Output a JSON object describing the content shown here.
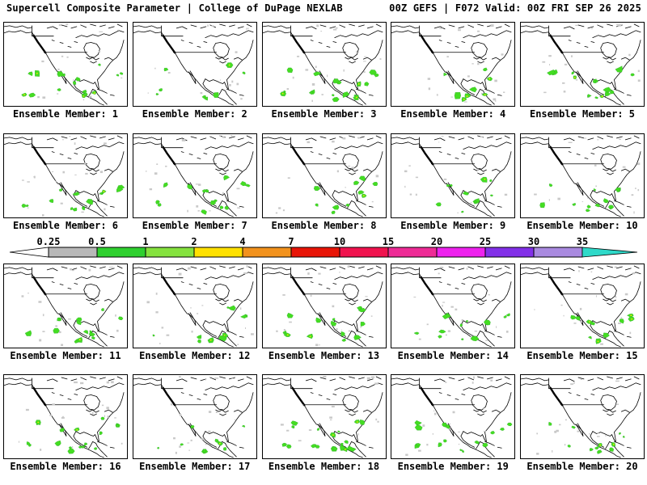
{
  "header": {
    "left": "Supercell Composite Parameter | College of DuPage NEXLAB",
    "right": "00Z GEFS | F072 Valid: 00Z FRI SEP 26 2025"
  },
  "colorbar": {
    "ticks": [
      "0.25",
      "0.5",
      "1",
      "2",
      "4",
      "7",
      "10",
      "15",
      "20",
      "25",
      "30",
      "35"
    ],
    "segment_colors": [
      "#b8b8b8",
      "#2fd02f",
      "#85e23e",
      "#ffe100",
      "#f2921d",
      "#e81507",
      "#f0134e",
      "#ee2b96",
      "#ee22ee",
      "#8230e8",
      "#a98ae0"
    ],
    "under_arrow_color": "#ffffff",
    "over_arrow_color": "#2fd9c9",
    "outline_color": "#000000"
  },
  "panels": {
    "label_prefix": "Ensemble Member:",
    "members": [
      {
        "id": 1,
        "label": "Ensemble Member: 1"
      },
      {
        "id": 2,
        "label": "Ensemble Member: 2"
      },
      {
        "id": 3,
        "label": "Ensemble Member: 3"
      },
      {
        "id": 4,
        "label": "Ensemble Member: 4"
      },
      {
        "id": 5,
        "label": "Ensemble Member: 5"
      },
      {
        "id": 6,
        "label": "Ensemble Member: 6"
      },
      {
        "id": 7,
        "label": "Ensemble Member: 7"
      },
      {
        "id": 8,
        "label": "Ensemble Member: 8"
      },
      {
        "id": 9,
        "label": "Ensemble Member: 9"
      },
      {
        "id": 10,
        "label": "Ensemble Member: 10"
      },
      {
        "id": 11,
        "label": "Ensemble Member: 11"
      },
      {
        "id": 12,
        "label": "Ensemble Member: 12"
      },
      {
        "id": 13,
        "label": "Ensemble Member: 13"
      },
      {
        "id": 14,
        "label": "Ensemble Member: 14"
      },
      {
        "id": 15,
        "label": "Ensemble Member: 15"
      },
      {
        "id": 16,
        "label": "Ensemble Member: 16"
      },
      {
        "id": 17,
        "label": "Ensemble Member: 17"
      },
      {
        "id": 18,
        "label": "Ensemble Member: 18"
      },
      {
        "id": 19,
        "label": "Ensemble Member: 19"
      },
      {
        "id": 20,
        "label": "Ensemble Member: 20"
      }
    ]
  },
  "map": {
    "background": "#ffffff",
    "outline_color": "#000000",
    "blob_color": "#44dd22",
    "blob_core_color": "#ffe100",
    "speckle_color": "#c9c9c9"
  }
}
